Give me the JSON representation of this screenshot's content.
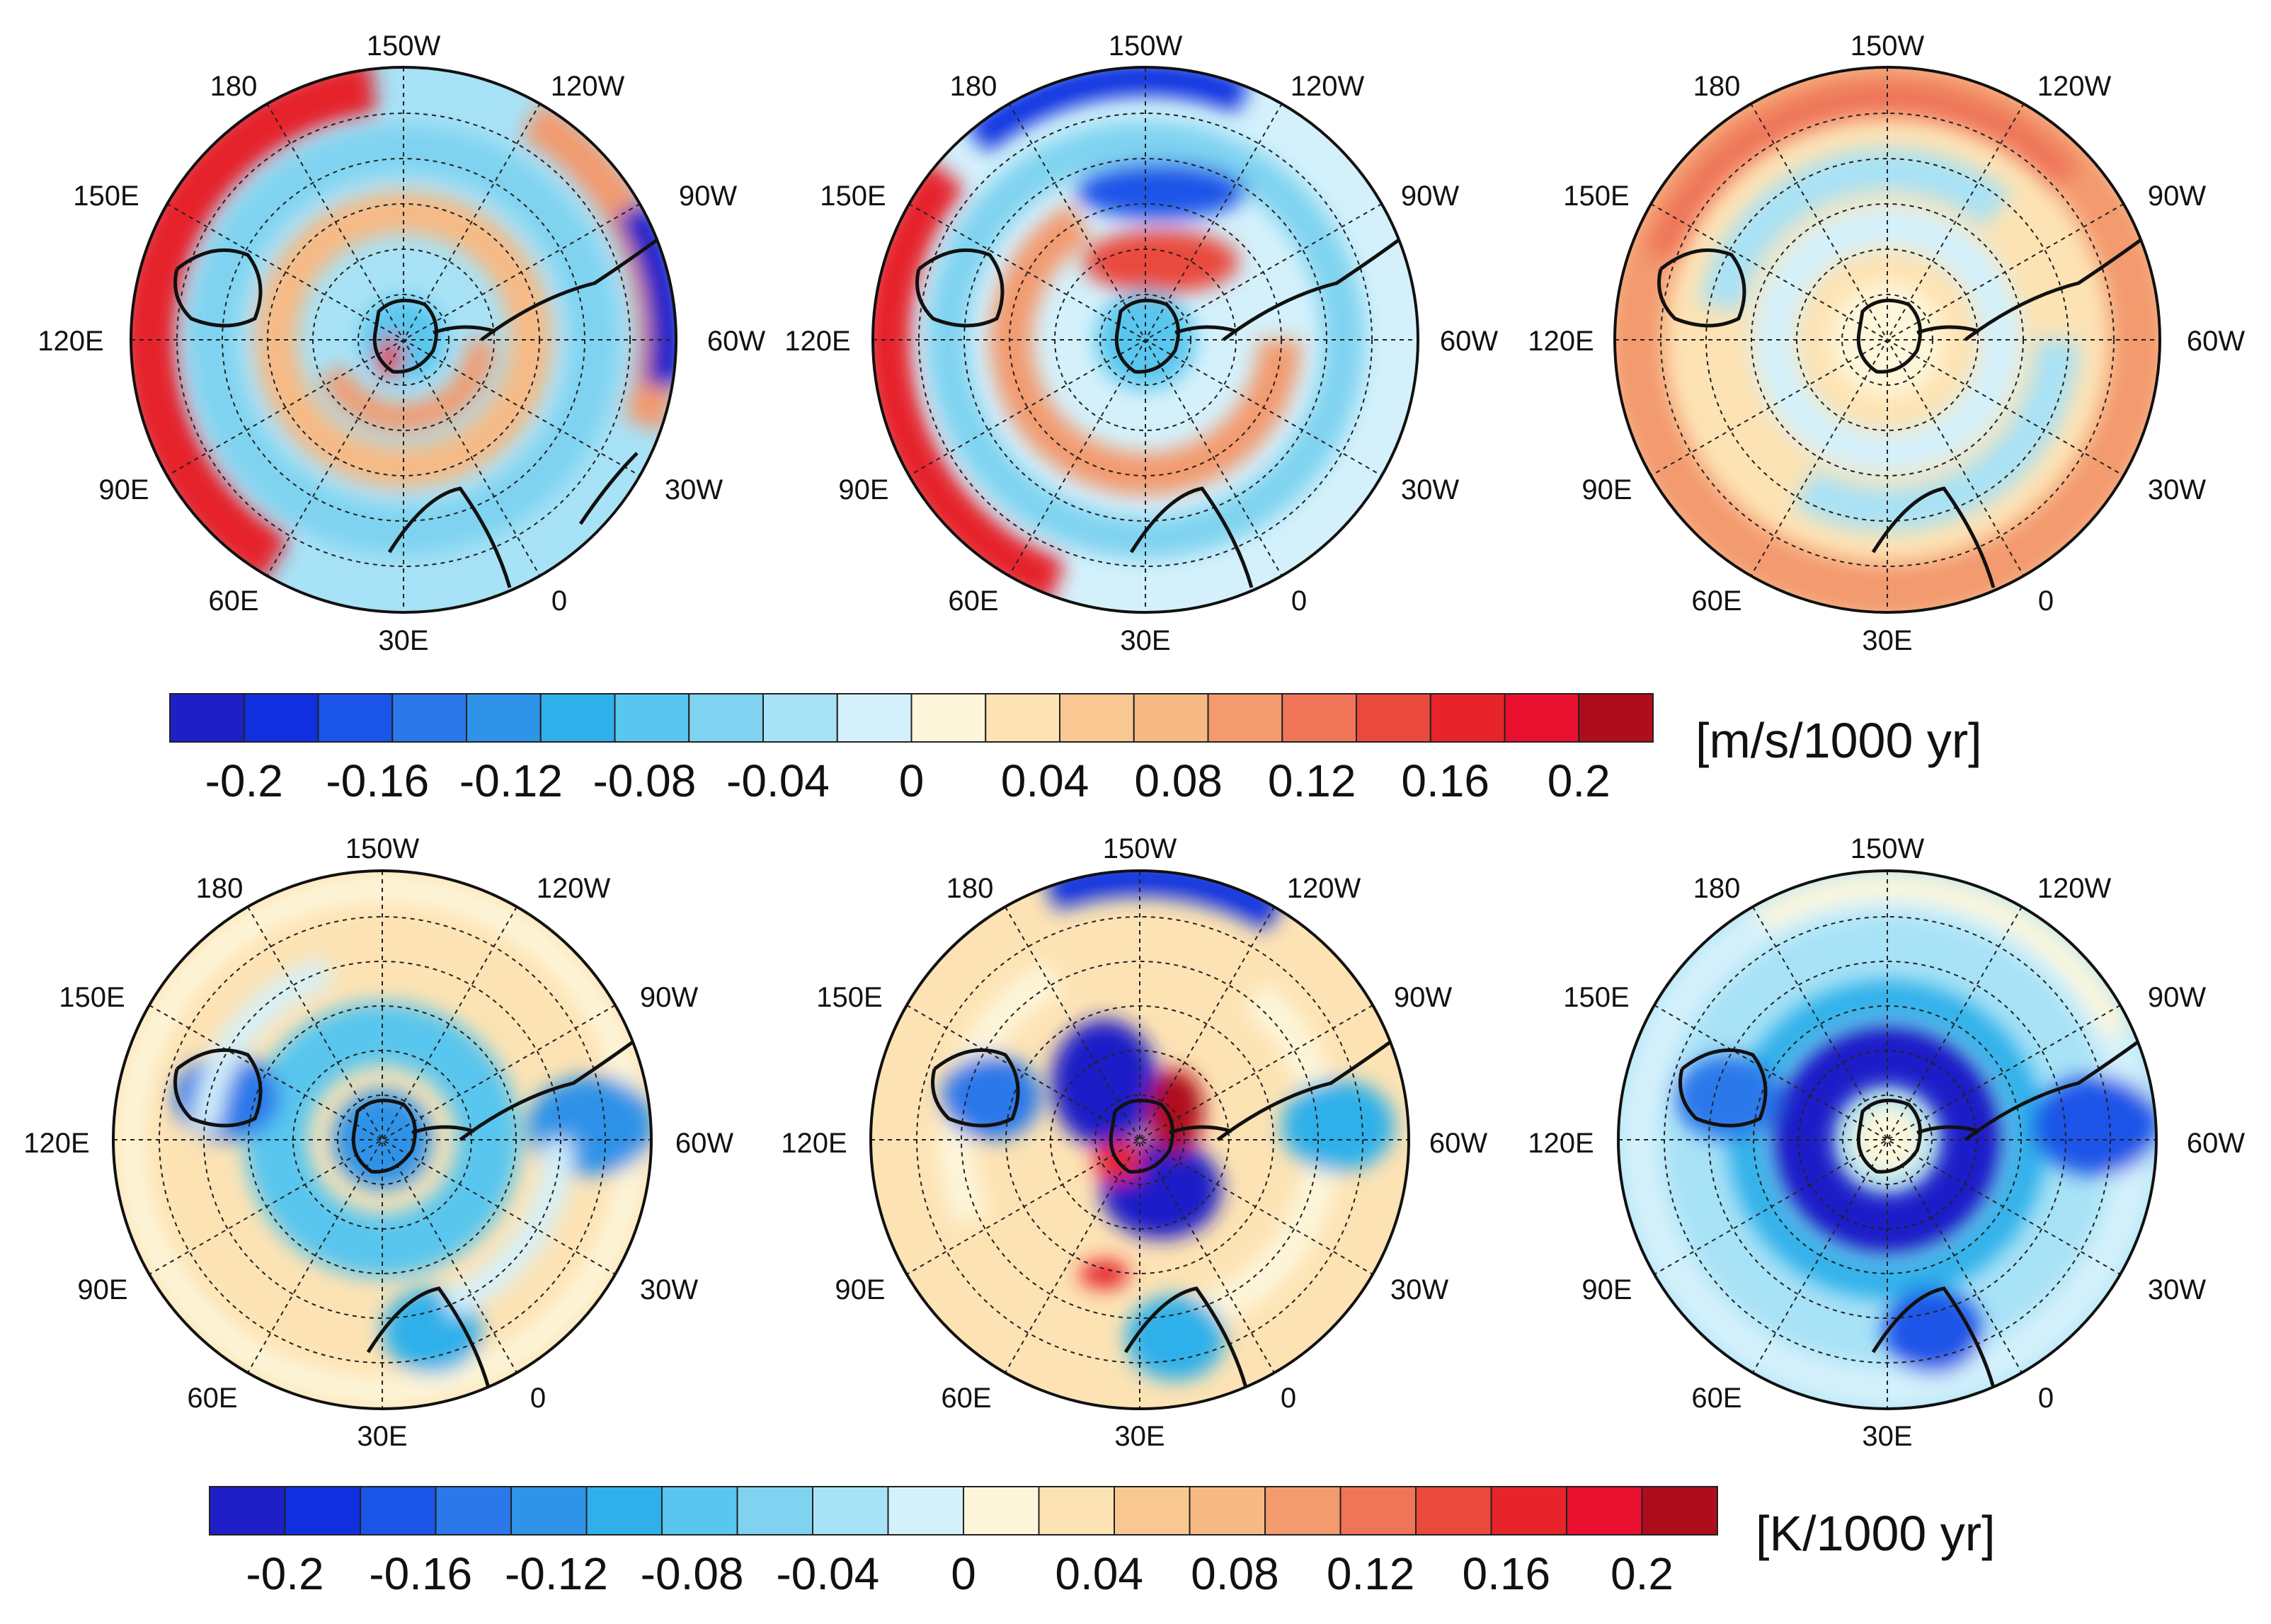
{
  "colorbar": {
    "colors": [
      "#1f1fc8",
      "#1030e0",
      "#1a55e8",
      "#2a78ea",
      "#2f93e8",
      "#2fb0ea",
      "#58c6ee",
      "#7fd3f0",
      "#a8e2f6",
      "#d4f1fb",
      "#fdf6da",
      "#fde3b4",
      "#f9c892",
      "#f7ba84",
      "#f39a6e",
      "#ef7458",
      "#ea4a3e",
      "#e6242a",
      "#e8102e",
      "#b00d1c"
    ],
    "tick_labels": [
      "-0.2",
      "-0.16",
      "-0.12",
      "-0.08",
      "-0.04",
      "0",
      "0.04",
      "0.08",
      "0.12",
      "0.16",
      "0.2"
    ]
  },
  "row_units": [
    "[m/s/1000 yr]",
    "[K/1000 yr]"
  ],
  "longitude_labels": {
    "p150W": "150W",
    "p180": "180",
    "p120W": "120W",
    "p150E": "150E",
    "p90W": "90W",
    "p120E": "120E",
    "p60W": "60W",
    "p90E": "90E",
    "p30W": "30W",
    "p60E": "60E",
    "p0": "0",
    "p30E": "30E"
  },
  "panels": [
    {
      "row": 0,
      "col": 0,
      "variable": "wind trend",
      "pattern": "strong red outer ring, blue mid-latitude ring"
    },
    {
      "row": 0,
      "col": 1,
      "variable": "wind trend",
      "pattern": "blue/red dipole ring around Antarctica, red outer ring"
    },
    {
      "row": 0,
      "col": 2,
      "variable": "wind trend",
      "pattern": "weak positive (orange) outer region"
    },
    {
      "row": 1,
      "col": 0,
      "variable": "temperature trend",
      "pattern": "blue over Antarctica and continents, orange oceans"
    },
    {
      "row": 1,
      "col": 1,
      "variable": "temperature trend",
      "pattern": "strong blue/red dipole near pole, blue edge at 150W"
    },
    {
      "row": 1,
      "col": 2,
      "variable": "temperature trend",
      "pattern": "deep blue ring around Antarctica, broad cooling"
    }
  ]
}
